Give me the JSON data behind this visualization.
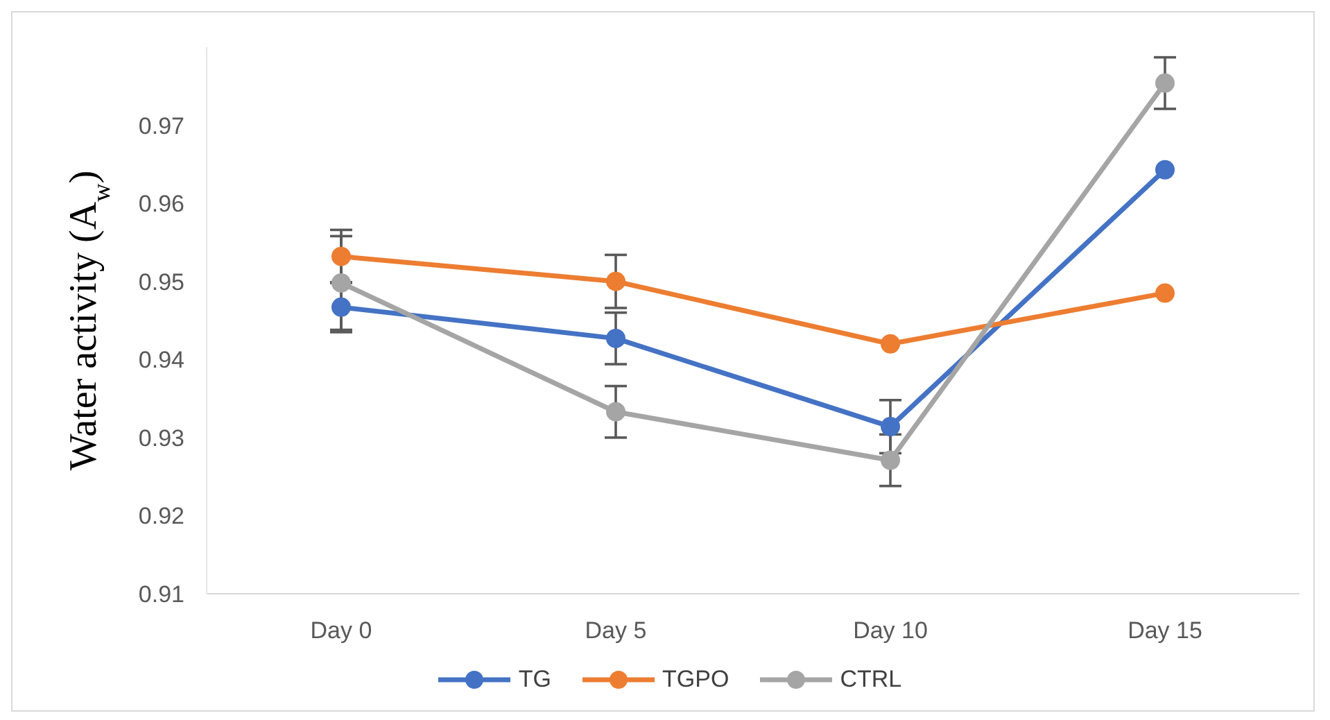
{
  "chart_data": {
    "type": "line",
    "ylabel": "Water activity (A$_{w}$)",
    "categories": [
      "Day 0",
      "Day 5",
      "Day 10",
      "Day 15"
    ],
    "series": [
      {
        "name": "TG",
        "color": "#4472c4",
        "values": [
          0.9467,
          0.9427,
          0.9314,
          0.9643
        ],
        "errors": [
          0.0032,
          0.0033,
          0.0034,
          null
        ]
      },
      {
        "name": "TGPO",
        "color": "#ed7d31",
        "values": [
          0.9532,
          0.95,
          0.942,
          0.9485
        ],
        "errors": [
          0.0034,
          0.0034,
          null,
          null
        ]
      },
      {
        "name": "CTRL",
        "color": "#a5a5a5",
        "values": [
          0.9498,
          0.9333,
          0.9271,
          0.9754
        ],
        "errors": [
          0.006,
          0.0033,
          0.0033,
          0.0033
        ]
      }
    ],
    "ylim": [
      0.91,
      0.98
    ],
    "yticks": [
      0.91,
      0.92,
      0.93,
      0.94,
      0.95,
      0.96,
      0.97
    ],
    "grid": false,
    "legend": "bottom",
    "marker": "circle",
    "line_style": "solid"
  }
}
